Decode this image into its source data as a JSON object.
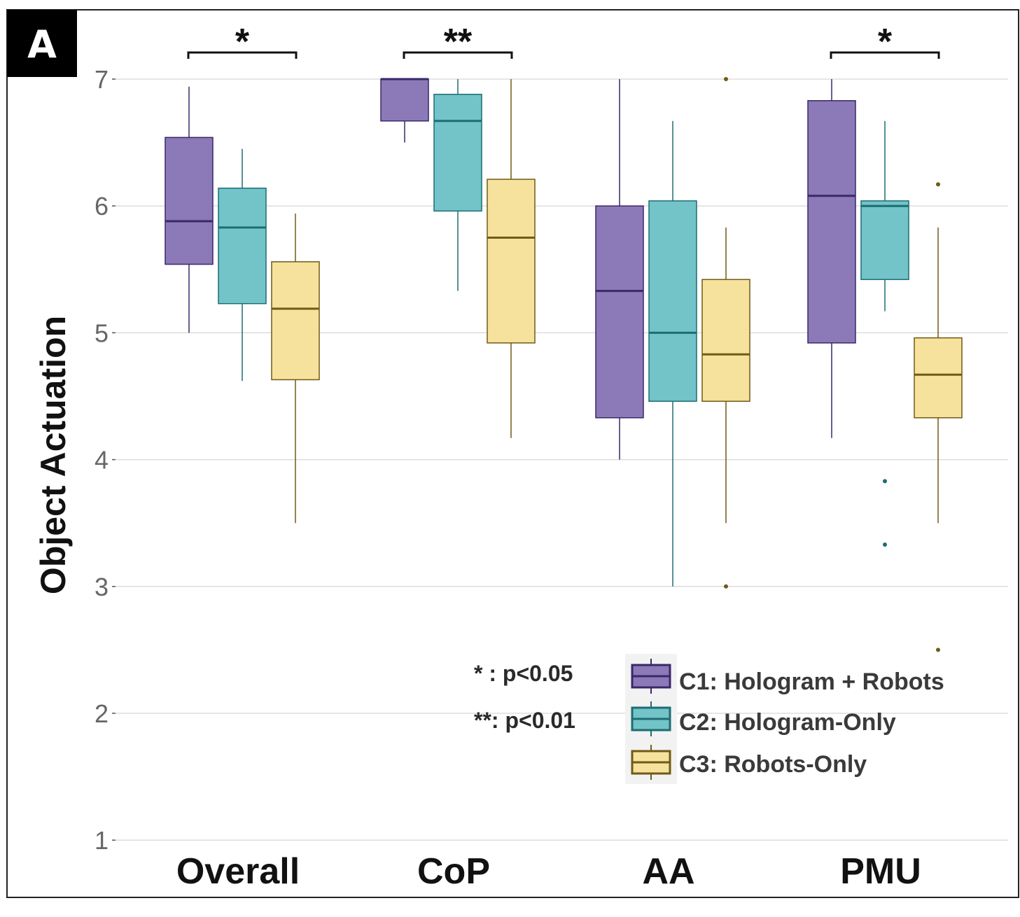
{
  "panel_label": "A",
  "colors": {
    "c1_fill": "#8b79b8",
    "c1_line": "#3a2868",
    "c2_fill": "#72c4c8",
    "c2_line": "#1d6d72",
    "c3_fill": "#f6e29c",
    "c3_line": "#705a16",
    "grid": "#dddddd"
  },
  "legend_notes": [
    "*  : p<0.05",
    "**: p<0.01"
  ],
  "chart_data": {
    "type": "boxplot",
    "ylabel": "Object Actuation",
    "xlabel": "",
    "ylim": [
      1,
      7.4
    ],
    "yticks": [
      1,
      2,
      3,
      4,
      5,
      6,
      7
    ],
    "grid": true,
    "legend_position": "bottom-right",
    "categories": [
      "Overall",
      "CoP",
      "AA",
      "PMU"
    ],
    "series": [
      {
        "name": "C1: Hologram + Robots",
        "boxes": [
          {
            "whisker_low": 5.0,
            "q1": 5.54,
            "median": 5.88,
            "q3": 6.54,
            "whisker_high": 6.94,
            "outliers": []
          },
          {
            "whisker_low": 6.5,
            "q1": 6.67,
            "median": 7.0,
            "q3": 7.0,
            "whisker_high": 7.0,
            "outliers": []
          },
          {
            "whisker_low": 4.0,
            "q1": 4.33,
            "median": 5.33,
            "q3": 6.0,
            "whisker_high": 7.0,
            "outliers": []
          },
          {
            "whisker_low": 4.17,
            "q1": 4.92,
            "median": 6.08,
            "q3": 6.83,
            "whisker_high": 7.0,
            "outliers": []
          }
        ]
      },
      {
        "name": "C2: Hologram-Only",
        "boxes": [
          {
            "whisker_low": 4.62,
            "q1": 5.23,
            "median": 5.83,
            "q3": 6.14,
            "whisker_high": 6.45,
            "outliers": []
          },
          {
            "whisker_low": 5.33,
            "q1": 5.96,
            "median": 6.67,
            "q3": 6.88,
            "whisker_high": 7.0,
            "outliers": []
          },
          {
            "whisker_low": 3.0,
            "q1": 4.46,
            "median": 5.0,
            "q3": 6.04,
            "whisker_high": 6.67,
            "outliers": []
          },
          {
            "whisker_low": 5.17,
            "q1": 5.42,
            "median": 6.0,
            "q3": 6.04,
            "whisker_high": 6.67,
            "outliers": [
              3.83,
              3.33
            ]
          }
        ]
      },
      {
        "name": "C3: Robots-Only",
        "boxes": [
          {
            "whisker_low": 3.5,
            "q1": 4.63,
            "median": 5.19,
            "q3": 5.56,
            "whisker_high": 5.94,
            "outliers": []
          },
          {
            "whisker_low": 4.17,
            "q1": 4.92,
            "median": 5.75,
            "q3": 6.21,
            "whisker_high": 7.0,
            "outliers": []
          },
          {
            "whisker_low": 3.5,
            "q1": 4.46,
            "median": 4.83,
            "q3": 5.42,
            "whisker_high": 5.83,
            "outliers": [
              7.0,
              3.0
            ]
          },
          {
            "whisker_low": 3.5,
            "q1": 4.33,
            "median": 4.67,
            "q3": 4.96,
            "whisker_high": 5.83,
            "outliers": [
              6.17,
              2.5
            ]
          }
        ]
      }
    ],
    "annotations": [
      {
        "category": "Overall",
        "from_series": 0,
        "to_series": 2,
        "label": "*"
      },
      {
        "category": "CoP",
        "from_series": 0,
        "to_series": 2,
        "label": "**"
      },
      {
        "category": "PMU",
        "from_series": 0,
        "to_series": 2,
        "label": "*"
      }
    ]
  }
}
